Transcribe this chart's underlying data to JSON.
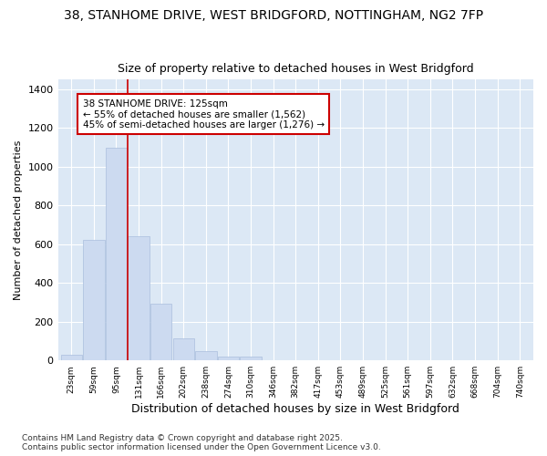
{
  "title_line1": "38, STANHOME DRIVE, WEST BRIDGFORD, NOTTINGHAM, NG2 7FP",
  "title_line2": "Size of property relative to detached houses in West Bridgford",
  "xlabel": "Distribution of detached houses by size in West Bridgford",
  "ylabel": "Number of detached properties",
  "bar_color": "#ccdaf0",
  "bar_edge_color": "#aabedd",
  "background_color": "#dce8f5",
  "grid_color": "#ffffff",
  "fig_background": "#ffffff",
  "categories": [
    "23sqm",
    "59sqm",
    "95sqm",
    "131sqm",
    "166sqm",
    "202sqm",
    "238sqm",
    "274sqm",
    "310sqm",
    "346sqm",
    "382sqm",
    "417sqm",
    "453sqm",
    "489sqm",
    "525sqm",
    "561sqm",
    "597sqm",
    "632sqm",
    "668sqm",
    "704sqm",
    "740sqm"
  ],
  "values": [
    30,
    625,
    1100,
    640,
    295,
    115,
    50,
    20,
    18,
    0,
    0,
    0,
    0,
    0,
    0,
    0,
    0,
    0,
    0,
    0,
    0
  ],
  "vline_x_index": 2.5,
  "vline_color": "#cc0000",
  "annotation_text": "38 STANHOME DRIVE: 125sqm\n← 55% of detached houses are smaller (1,562)\n45% of semi-detached houses are larger (1,276) →",
  "annotation_box_facecolor": "#ffffff",
  "annotation_box_edgecolor": "#cc0000",
  "ylim": [
    0,
    1450
  ],
  "yticks": [
    0,
    200,
    400,
    600,
    800,
    1000,
    1200,
    1400
  ],
  "footer_line1": "Contains HM Land Registry data © Crown copyright and database right 2025.",
  "footer_line2": "Contains public sector information licensed under the Open Government Licence v3.0."
}
